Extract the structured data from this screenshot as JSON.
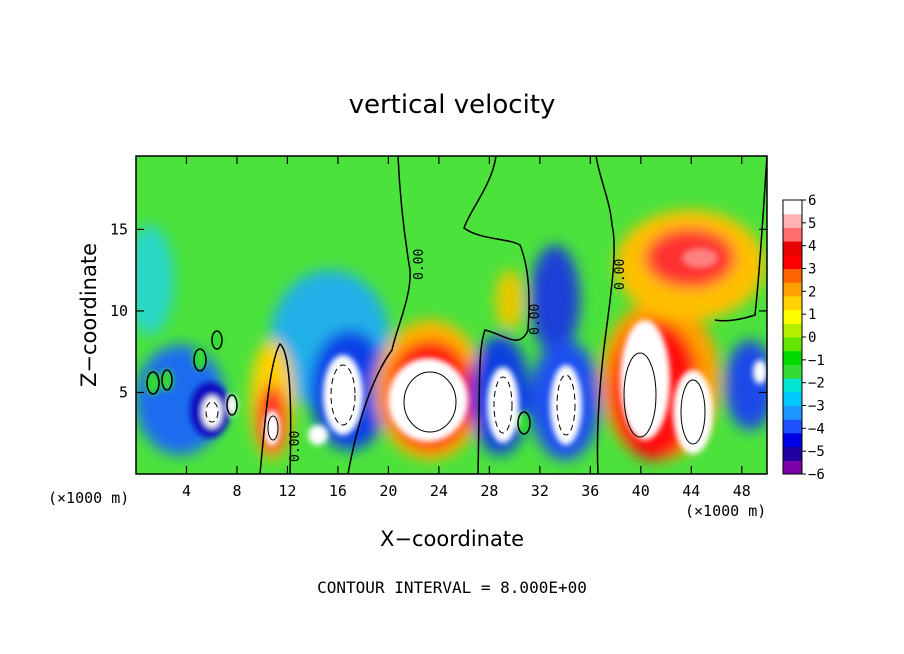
{
  "chart_data": {
    "type": "heatmap",
    "title": "vertical velocity",
    "xlabel": "X−coordinate",
    "ylabel": "Z−coordinate",
    "x_unit": "(×1000 m)",
    "x_unit_right": "(×1000 m)",
    "xlim": [
      0,
      50
    ],
    "ylim": [
      0,
      19.5
    ],
    "x_ticks": [
      4,
      8,
      12,
      16,
      20,
      24,
      28,
      32,
      36,
      40,
      44,
      48
    ],
    "y_ticks": [
      5,
      10,
      15
    ],
    "colorbar": {
      "min": -6,
      "max": 6,
      "ticks": [
        "6",
        "5",
        "4",
        "3",
        "2",
        "1",
        "0",
        "−1",
        "−2",
        "−3",
        "−4",
        "−5",
        "−6"
      ],
      "colors": [
        "#7a00a8",
        "#2000a0",
        "#0000e6",
        "#1e50ff",
        "#1e96ff",
        "#00c8ff",
        "#00e6d2",
        "#32dc32",
        "#00dc00",
        "#64e600",
        "#b4f000",
        "#ffff00",
        "#ffd200",
        "#ffa000",
        "#ff6400",
        "#ff0000",
        "#e60000",
        "#ff6e6e",
        "#ffb4b4",
        "#ffffff"
      ]
    },
    "contour_labels": [
      "0.00",
      "0.00",
      "0.00",
      "0.00"
    ],
    "footer": "CONTOUR INTERVAL = 8.000E+00",
    "cells": [
      {
        "x": 2,
        "z": 3,
        "w": -3.5
      },
      {
        "x": 5,
        "z": 3.5,
        "w": -6
      },
      {
        "x": 10.8,
        "z": 3,
        "w": 6
      },
      {
        "x": 13.5,
        "z": 2,
        "w": -6
      },
      {
        "x": 15.5,
        "z": 5,
        "w": -6
      },
      {
        "x": 22.5,
        "z": 5,
        "w": 6
      },
      {
        "x": 29,
        "z": 4.5,
        "w": -6
      },
      {
        "x": 34,
        "z": 4.5,
        "w": -6
      },
      {
        "x": 40.5,
        "z": 5,
        "w": 6
      },
      {
        "x": 43.5,
        "z": 4,
        "w": 6
      },
      {
        "x": 44,
        "z": 13.5,
        "w": 5
      },
      {
        "x": 33,
        "z": 10,
        "w": -4
      },
      {
        "x": 49.5,
        "z": 6,
        "w": -6
      }
    ]
  }
}
